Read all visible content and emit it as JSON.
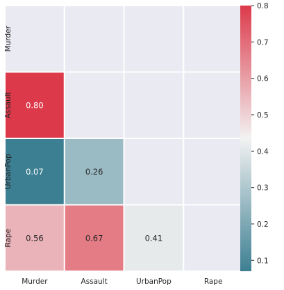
{
  "chart_data": {
    "type": "heatmap",
    "title": "",
    "xlabel": "",
    "ylabel": "",
    "x_labels": [
      "Murder",
      "Assault",
      "UrbanPop",
      "Rape"
    ],
    "y_labels": [
      "Murder",
      "Assault",
      "UrbanPop",
      "Rape"
    ],
    "mask": "upper-triangle-including-diagonal",
    "cells": [
      {
        "row": 1,
        "col": 0,
        "value": 0.8,
        "label": "0.80"
      },
      {
        "row": 2,
        "col": 0,
        "value": 0.07,
        "label": "0.07"
      },
      {
        "row": 2,
        "col": 1,
        "value": 0.26,
        "label": "0.26"
      },
      {
        "row": 3,
        "col": 0,
        "value": 0.56,
        "label": "0.56"
      },
      {
        "row": 3,
        "col": 1,
        "value": 0.67,
        "label": "0.67"
      },
      {
        "row": 3,
        "col": 2,
        "value": 0.41,
        "label": "0.41"
      }
    ],
    "colorbar": {
      "vmin": 0.07,
      "vmax": 0.8,
      "ticks": [
        {
          "value": 0.1,
          "label": "0.1"
        },
        {
          "value": 0.2,
          "label": "0.2"
        },
        {
          "value": 0.3,
          "label": "0.3"
        },
        {
          "value": 0.4,
          "label": "0.4"
        },
        {
          "value": 0.5,
          "label": "0.5"
        },
        {
          "value": 0.6,
          "label": "0.6"
        },
        {
          "value": 0.7,
          "label": "0.7"
        },
        {
          "value": 0.8,
          "label": "0.8"
        }
      ],
      "colormap": "diverging-teal-to-red",
      "color_low": "#3d7f92",
      "color_mid": "#f2f2f2",
      "color_high": "#dc3a4b"
    },
    "masked_cell_color": "#eaeaf2",
    "grid_line_color": "#ffffff",
    "annotation_dark_text": "#262626",
    "annotation_light_text": "#ffffff"
  }
}
